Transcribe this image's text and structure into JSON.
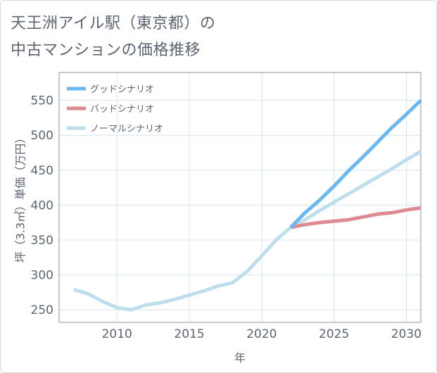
{
  "title": {
    "line1": "天王洲アイル駅（東京都）の",
    "line2": "中古マンションの価格推移"
  },
  "colors": {
    "good": "#6cb8ee",
    "bad": "#de8a92",
    "normal": "#bfdeec",
    "grid": "#d6e4ee",
    "axis": "#5b6470"
  },
  "chart_data": {
    "type": "line",
    "title": "天王洲アイル駅（東京都）の中古マンションの価格推移",
    "xlabel": "年",
    "ylabel": "坪（3.3㎡）単価（万円）",
    "xlim": [
      2006,
      2031
    ],
    "ylim": [
      232,
      590
    ],
    "xticks": [
      2010,
      2015,
      2020,
      2025,
      2030
    ],
    "yticks": [
      250,
      300,
      350,
      400,
      450,
      500,
      550
    ],
    "grid": true,
    "legend_position": "top-left",
    "series": [
      {
        "name": "グッドシナリオ",
        "color_key": "good",
        "x": [
          2022,
          2023,
          2024,
          2025,
          2026,
          2027,
          2028,
          2029,
          2030,
          2031
        ],
        "values": [
          368,
          389,
          407,
          427,
          449,
          469,
          490,
          511,
          530,
          550
        ]
      },
      {
        "name": "バッドシナリオ",
        "color_key": "bad",
        "x": [
          2022,
          2023,
          2024,
          2025,
          2026,
          2027,
          2028,
          2029,
          2030,
          2031
        ],
        "values": [
          368,
          372,
          375,
          377,
          379,
          383,
          387,
          389,
          393,
          396
        ]
      },
      {
        "name": "ノーマルシナリオ",
        "color_key": "normal",
        "x": [
          2007,
          2008,
          2009,
          2010,
          2011,
          2012,
          2013,
          2014,
          2015,
          2016,
          2017,
          2018,
          2019,
          2020,
          2021,
          2022,
          2023,
          2024,
          2025,
          2026,
          2027,
          2028,
          2029,
          2030,
          2031
        ],
        "values": [
          279,
          273,
          262,
          253,
          250,
          257,
          260,
          265,
          271,
          277,
          284,
          289,
          305,
          327,
          350,
          368,
          379,
          392,
          404,
          416,
          428,
          440,
          452,
          465,
          477
        ]
      }
    ]
  }
}
